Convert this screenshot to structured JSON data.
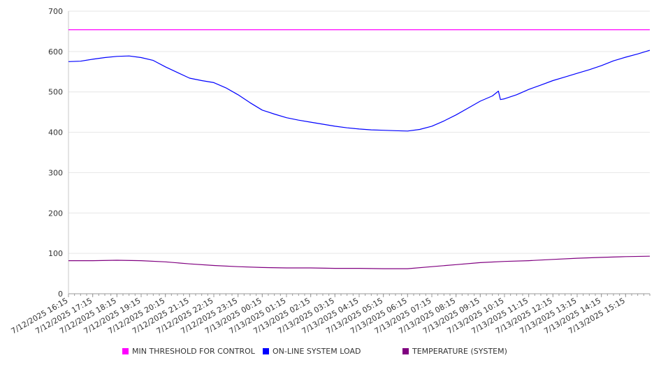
{
  "chart_data": {
    "type": "line",
    "ylim": [
      0,
      700
    ],
    "y_ticks": [
      "0",
      "100",
      "200",
      "300",
      "400",
      "500",
      "600",
      "700"
    ],
    "x_ticks": [
      "7/12/2025 16:15",
      "7/12/2025 17:15",
      "7/12/2025 18:15",
      "7/12/2025 19:15",
      "7/12/2025 20:15",
      "7/12/2025 21:15",
      "7/12/2025 22:15",
      "7/12/2025 23:15",
      "7/13/2025 00:15",
      "7/13/2025 01:15",
      "7/13/2025 02:15",
      "7/13/2025 03:15",
      "7/13/2025 04:15",
      "7/13/2025 05:15",
      "7/13/2025 06:15",
      "7/13/2025 07:15",
      "7/13/2025 08:15",
      "7/13/2025 09:15",
      "7/13/2025 10:15",
      "7/13/2025 11:15",
      "7/13/2025 12:15",
      "7/13/2025 13:15",
      "7/13/2025 14:15",
      "7/13/2025 15:15"
    ],
    "x_range": [
      "7/12/2025 16:15",
      "7/13/2025 16:15"
    ],
    "grid": true,
    "legend_position": "bottom",
    "series": [
      {
        "name": "MIN THRESHOLD FOR CONTROL",
        "color": "#ff00ff",
        "points": [
          [
            "7/12/2025 16:15",
            654
          ],
          [
            "7/13/2025 16:15",
            654
          ]
        ]
      },
      {
        "name": "ON-LINE SYSTEM LOAD",
        "color": "#0000ff",
        "points": [
          [
            "7/12/2025 16:15",
            575
          ],
          [
            "7/12/2025 16:45",
            576
          ],
          [
            "7/12/2025 17:15",
            581
          ],
          [
            "7/12/2025 17:45",
            585
          ],
          [
            "7/12/2025 18:15",
            588
          ],
          [
            "7/12/2025 18:45",
            589
          ],
          [
            "7/12/2025 19:15",
            585
          ],
          [
            "7/12/2025 19:45",
            578
          ],
          [
            "7/12/2025 20:15",
            562
          ],
          [
            "7/12/2025 20:45",
            548
          ],
          [
            "7/12/2025 21:15",
            534
          ],
          [
            "7/12/2025 21:45",
            528
          ],
          [
            "7/12/2025 22:15",
            523
          ],
          [
            "7/12/2025 22:45",
            510
          ],
          [
            "7/12/2025 23:15",
            493
          ],
          [
            "7/12/2025 23:45",
            473
          ],
          [
            "7/13/2025 00:15",
            455
          ],
          [
            "7/13/2025 00:45",
            445
          ],
          [
            "7/13/2025 01:15",
            436
          ],
          [
            "7/13/2025 01:45",
            430
          ],
          [
            "7/13/2025 02:15",
            425
          ],
          [
            "7/13/2025 02:45",
            420
          ],
          [
            "7/13/2025 03:15",
            415
          ],
          [
            "7/13/2025 03:45",
            411
          ],
          [
            "7/13/2025 04:15",
            408
          ],
          [
            "7/13/2025 04:45",
            406
          ],
          [
            "7/13/2025 05:15",
            405
          ],
          [
            "7/13/2025 05:45",
            404
          ],
          [
            "7/13/2025 06:15",
            403
          ],
          [
            "7/13/2025 06:45",
            407
          ],
          [
            "7/13/2025 07:15",
            415
          ],
          [
            "7/13/2025 07:45",
            428
          ],
          [
            "7/13/2025 08:15",
            443
          ],
          [
            "7/13/2025 08:45",
            460
          ],
          [
            "7/13/2025 09:15",
            477
          ],
          [
            "7/13/2025 09:45",
            490
          ],
          [
            "7/13/2025 10:00",
            502
          ],
          [
            "7/13/2025 10:05",
            481
          ],
          [
            "7/13/2025 10:15",
            483
          ],
          [
            "7/13/2025 10:45",
            493
          ],
          [
            "7/13/2025 11:15",
            506
          ],
          [
            "7/13/2025 11:45",
            517
          ],
          [
            "7/13/2025 12:15",
            528
          ],
          [
            "7/13/2025 12:45",
            537
          ],
          [
            "7/13/2025 13:15",
            546
          ],
          [
            "7/13/2025 13:45",
            555
          ],
          [
            "7/13/2025 14:15",
            565
          ],
          [
            "7/13/2025 14:45",
            577
          ],
          [
            "7/13/2025 15:15",
            586
          ],
          [
            "7/13/2025 15:45",
            594
          ],
          [
            "7/13/2025 16:15",
            603
          ]
        ]
      },
      {
        "name": "TEMPERATURE (SYSTEM)",
        "color": "#800080",
        "points": [
          [
            "7/12/2025 16:15",
            82
          ],
          [
            "7/12/2025 17:15",
            82
          ],
          [
            "7/12/2025 18:15",
            83
          ],
          [
            "7/12/2025 19:15",
            82
          ],
          [
            "7/12/2025 20:15",
            79
          ],
          [
            "7/12/2025 21:15",
            74
          ],
          [
            "7/12/2025 22:15",
            70
          ],
          [
            "7/12/2025 23:15",
            67
          ],
          [
            "7/13/2025 00:15",
            65
          ],
          [
            "7/13/2025 01:15",
            64
          ],
          [
            "7/13/2025 02:15",
            64
          ],
          [
            "7/13/2025 03:15",
            63
          ],
          [
            "7/13/2025 04:15",
            63
          ],
          [
            "7/13/2025 05:15",
            62
          ],
          [
            "7/13/2025 06:15",
            62
          ],
          [
            "7/13/2025 07:15",
            67
          ],
          [
            "7/13/2025 08:15",
            72
          ],
          [
            "7/13/2025 09:15",
            77
          ],
          [
            "7/13/2025 10:15",
            80
          ],
          [
            "7/13/2025 11:15",
            82
          ],
          [
            "7/13/2025 12:15",
            85
          ],
          [
            "7/13/2025 13:15",
            88
          ],
          [
            "7/13/2025 14:15",
            90
          ],
          [
            "7/13/2025 15:15",
            92
          ],
          [
            "7/13/2025 16:15",
            93
          ]
        ]
      }
    ]
  }
}
